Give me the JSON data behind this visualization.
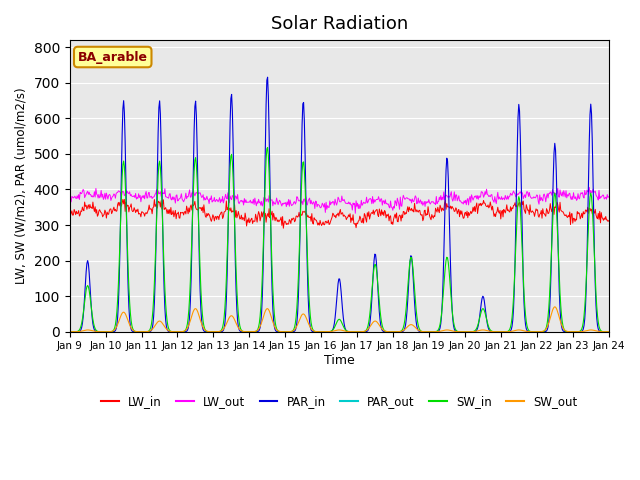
{
  "title": "Solar Radiation",
  "xlabel": "Time",
  "ylabel": "LW, SW (W/m2), PAR (umol/m2/s)",
  "ylim": [
    0,
    820
  ],
  "yticks": [
    0,
    100,
    200,
    300,
    400,
    500,
    600,
    700,
    800
  ],
  "date_labels": [
    "Jan 9",
    "Jan 10",
    "Jan 11",
    "Jan 12",
    "Jan 13",
    "Jan 14",
    "Jan 15",
    "Jan 16",
    "Jan 17",
    "Jan 18",
    "Jan 19",
    "Jan 20",
    "Jan 21",
    "Jan 22",
    "Jan 23",
    "Jan 24"
  ],
  "colors": {
    "LW_in": "#ff0000",
    "LW_out": "#ff00ff",
    "PAR_in": "#0000dd",
    "PAR_out": "#00cccc",
    "SW_in": "#00dd00",
    "SW_out": "#ff9900"
  },
  "bg_color": "#e8e8e8",
  "annotation_text": "BA_arable",
  "annotation_bg": "#ffff99",
  "annotation_border": "#cc8800",
  "n_days": 15,
  "par_peaks": [
    200,
    650,
    650,
    650,
    670,
    720,
    650,
    150,
    220,
    215,
    490,
    100,
    640,
    530,
    640
  ],
  "sw_peaks": [
    130,
    480,
    480,
    490,
    500,
    520,
    480,
    35,
    190,
    210,
    210,
    65,
    380,
    390,
    390
  ],
  "sw_out_peaks": [
    5,
    55,
    30,
    65,
    45,
    65,
    50,
    5,
    30,
    20,
    5,
    5,
    5,
    70,
    5
  ],
  "par_sigma": 0.07,
  "sw_sigma": 0.09
}
